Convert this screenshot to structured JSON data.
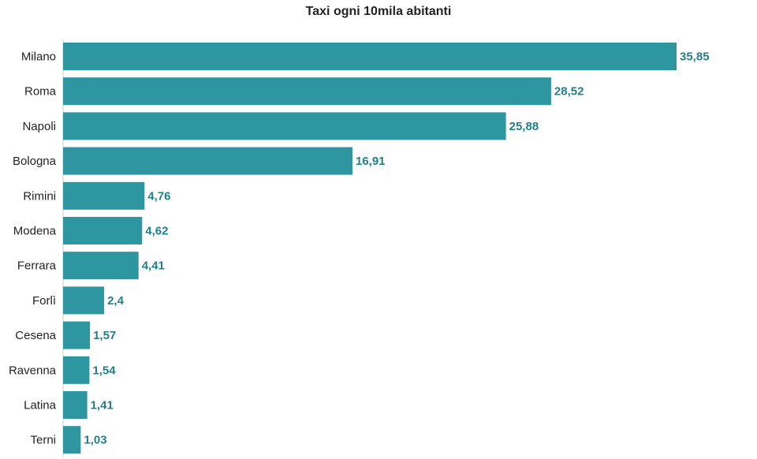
{
  "chart_data": {
    "type": "bar",
    "orientation": "horizontal",
    "title": "Taxi ogni 10mila abitanti",
    "categories": [
      "Milano",
      "Roma",
      "Napoli",
      "Bologna",
      "Rimini",
      "Modena",
      "Ferrara",
      "Forlì",
      "Cesena",
      "Ravenna",
      "Latina",
      "Terni"
    ],
    "values": [
      35.85,
      28.52,
      25.88,
      16.91,
      4.76,
      4.62,
      4.41,
      2.4,
      1.57,
      1.54,
      1.41,
      1.03
    ],
    "value_labels": [
      "35,85",
      "28,52",
      "25,88",
      "16,91",
      "4,76",
      "4,62",
      "4,41",
      "2,4",
      "1,57",
      "1,54",
      "1,41",
      "1,03"
    ],
    "xlim": [
      0,
      35.85
    ],
    "grid": false,
    "legend": "none",
    "bar_color": "#2e96a0",
    "label_color": "#1f7f8c"
  }
}
